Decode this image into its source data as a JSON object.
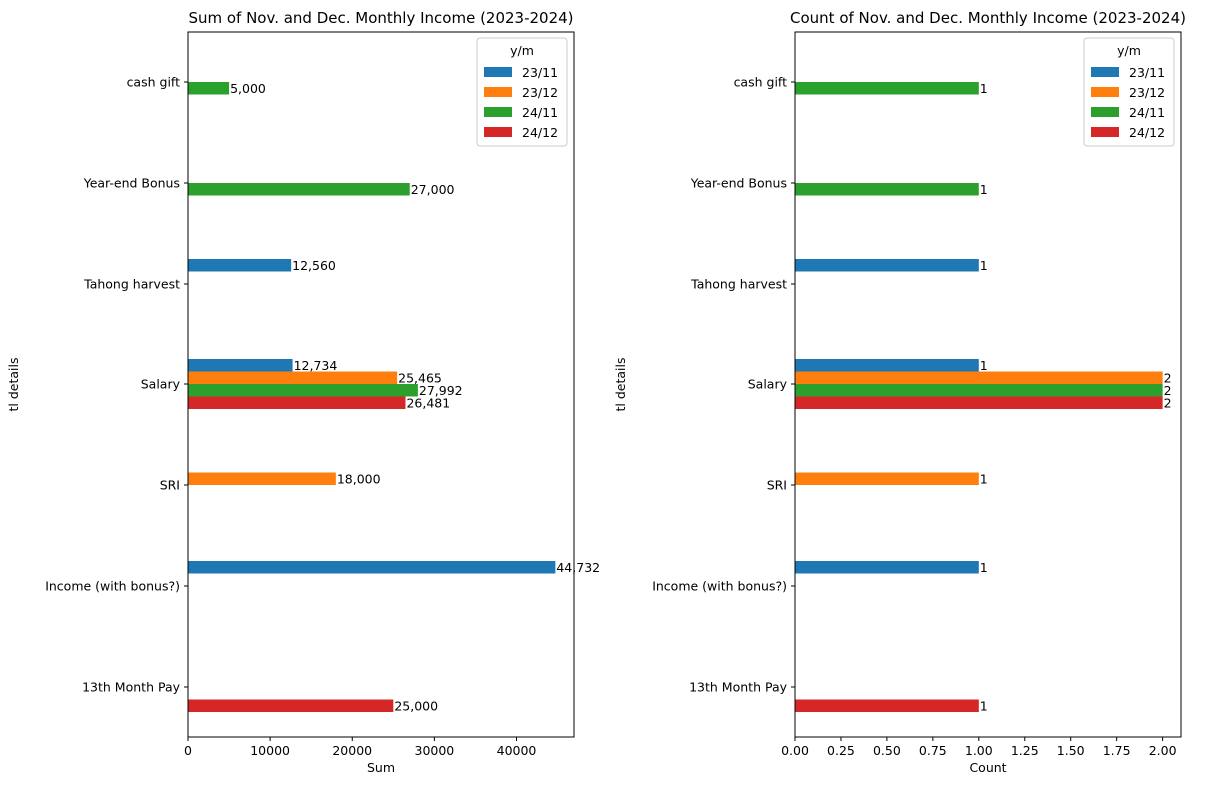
{
  "chart_data": [
    {
      "type": "bar",
      "orientation": "horizontal",
      "title": "Sum of Nov. and Dec. Monthly Income (2023-2024)",
      "xlabel": "Sum",
      "ylabel": "tl details",
      "xlim": [
        0,
        47000
      ],
      "xticks": [
        0,
        10000,
        20000,
        30000,
        40000
      ],
      "xtick_labels": [
        "0",
        "10000",
        "20000",
        "30000",
        "40000"
      ],
      "categories": [
        "13th Month Pay",
        "Income (with bonus?)",
        "SRI",
        "Salary",
        "Tahong harvest",
        "Year-end Bonus",
        "cash gift"
      ],
      "legend_title": "y/m",
      "legend_position": "top-right",
      "grid": false,
      "series": [
        {
          "name": "23/11",
          "color": "#1f77b4",
          "values": [
            null,
            44732,
            null,
            12734,
            12560,
            null,
            null
          ],
          "labels": [
            "",
            "44,732",
            "",
            "12,734",
            "12,560",
            "",
            ""
          ]
        },
        {
          "name": "23/12",
          "color": "#ff7f0e",
          "values": [
            null,
            null,
            18000,
            25465,
            null,
            null,
            null
          ],
          "labels": [
            "",
            "",
            "18,000",
            "25,465",
            "",
            "",
            ""
          ]
        },
        {
          "name": "24/11",
          "color": "#2ca02c",
          "values": [
            null,
            null,
            null,
            27992,
            null,
            27000,
            5000
          ],
          "labels": [
            "",
            "",
            "",
            "27,992",
            "",
            "27,000",
            "5,000"
          ]
        },
        {
          "name": "24/12",
          "color": "#d62728",
          "values": [
            25000,
            null,
            null,
            26481,
            null,
            null,
            null
          ],
          "labels": [
            "25,000",
            "",
            "",
            "26,481",
            "",
            "",
            ""
          ]
        }
      ]
    },
    {
      "type": "bar",
      "orientation": "horizontal",
      "title": "Count of Nov. and Dec. Monthly Income (2023-2024)",
      "xlabel": "Count",
      "ylabel": "tl details",
      "xlim": [
        0,
        2.1
      ],
      "xticks": [
        0,
        0.25,
        0.5,
        0.75,
        1.0,
        1.25,
        1.5,
        1.75,
        2.0
      ],
      "xtick_labels": [
        "0.00",
        "0.25",
        "0.50",
        "0.75",
        "1.00",
        "1.25",
        "1.50",
        "1.75",
        "2.00"
      ],
      "categories": [
        "13th Month Pay",
        "Income (with bonus?)",
        "SRI",
        "Salary",
        "Tahong harvest",
        "Year-end Bonus",
        "cash gift"
      ],
      "legend_title": "y/m",
      "legend_position": "top-right",
      "grid": false,
      "series": [
        {
          "name": "23/11",
          "color": "#1f77b4",
          "values": [
            null,
            1,
            null,
            1,
            1,
            null,
            null
          ],
          "labels": [
            "",
            "1",
            "",
            "1",
            "1",
            "",
            ""
          ]
        },
        {
          "name": "23/12",
          "color": "#ff7f0e",
          "values": [
            null,
            null,
            1,
            2,
            null,
            null,
            null
          ],
          "labels": [
            "",
            "",
            "1",
            "2",
            "",
            "",
            ""
          ]
        },
        {
          "name": "24/11",
          "color": "#2ca02c",
          "values": [
            null,
            null,
            null,
            2,
            null,
            1,
            1
          ],
          "labels": [
            "",
            "",
            "",
            "2",
            "",
            "1",
            "1"
          ]
        },
        {
          "name": "24/12",
          "color": "#d62728",
          "values": [
            1,
            null,
            null,
            2,
            null,
            null,
            null
          ],
          "labels": [
            "1",
            "",
            "",
            "2",
            "",
            "",
            ""
          ]
        }
      ]
    }
  ]
}
